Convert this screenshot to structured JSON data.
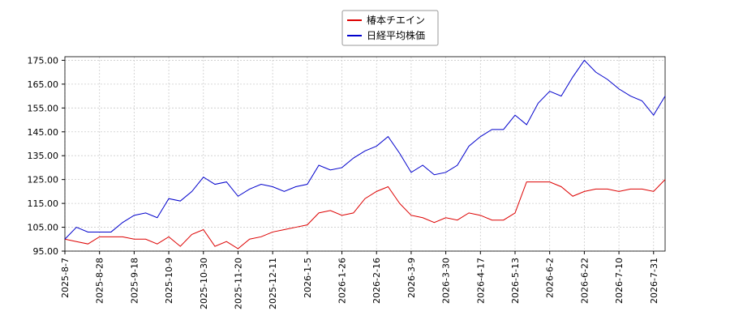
{
  "chart_data": {
    "type": "line",
    "x": [
      "2025-8-7",
      null,
      null,
      "2025-8-28",
      null,
      null,
      "2025-9-18",
      null,
      null,
      "2025-10-9",
      null,
      null,
      "2025-10-30",
      null,
      null,
      "2025-11-20",
      null,
      null,
      "2025-12-11",
      null,
      null,
      "2026-1-5",
      null,
      null,
      "2026-1-26",
      null,
      null,
      "2026-2-16",
      null,
      null,
      "2026-3-9",
      null,
      null,
      "2026-3-30",
      null,
      null,
      "2026-4-17",
      null,
      null,
      "2026-5-13",
      null,
      null,
      "2026-6-2",
      null,
      null,
      "2026-6-22",
      null,
      null,
      "2026-7-10",
      null,
      null,
      "2026-7-31",
      null
    ],
    "series": [
      {
        "name": "椿本チエイン",
        "color": "#dd0000",
        "values": [
          100,
          99,
          98,
          101,
          101,
          101,
          100,
          100,
          98,
          101,
          97,
          102,
          104,
          97,
          99,
          96,
          100,
          101,
          103,
          104,
          105,
          106,
          111,
          112,
          110,
          111,
          117,
          120,
          122,
          115,
          110,
          109,
          107,
          109,
          108,
          111,
          110,
          108,
          108,
          111,
          124,
          124,
          124,
          122,
          118,
          120,
          121,
          121,
          120,
          121,
          121,
          120,
          125
        ]
      },
      {
        "name": "日経平均株価",
        "color": "#0000cc",
        "values": [
          100,
          105,
          103,
          103,
          103,
          107,
          110,
          111,
          109,
          117,
          116,
          120,
          126,
          123,
          124,
          118,
          121,
          123,
          122,
          120,
          122,
          123,
          131,
          129,
          130,
          134,
          137,
          139,
          143,
          136,
          128,
          131,
          127,
          128,
          131,
          139,
          143,
          146,
          146,
          152,
          148,
          157,
          162,
          160,
          168,
          175,
          170,
          167,
          163,
          160,
          158,
          152,
          160
        ]
      }
    ],
    "ylim": [
      95,
      176.5
    ],
    "yticks": [
      {
        "value": 95,
        "label": "95.00"
      },
      {
        "value": 105,
        "label": "105.00"
      },
      {
        "value": 115,
        "label": "115.00"
      },
      {
        "value": 125,
        "label": "125.00"
      },
      {
        "value": 135,
        "label": "135.00"
      },
      {
        "value": 145,
        "label": "145.00"
      },
      {
        "value": 155,
        "label": "155.00"
      },
      {
        "value": 165,
        "label": "165.00"
      },
      {
        "value": 175,
        "label": "175.00"
      }
    ],
    "grid": true,
    "legend": "top"
  }
}
